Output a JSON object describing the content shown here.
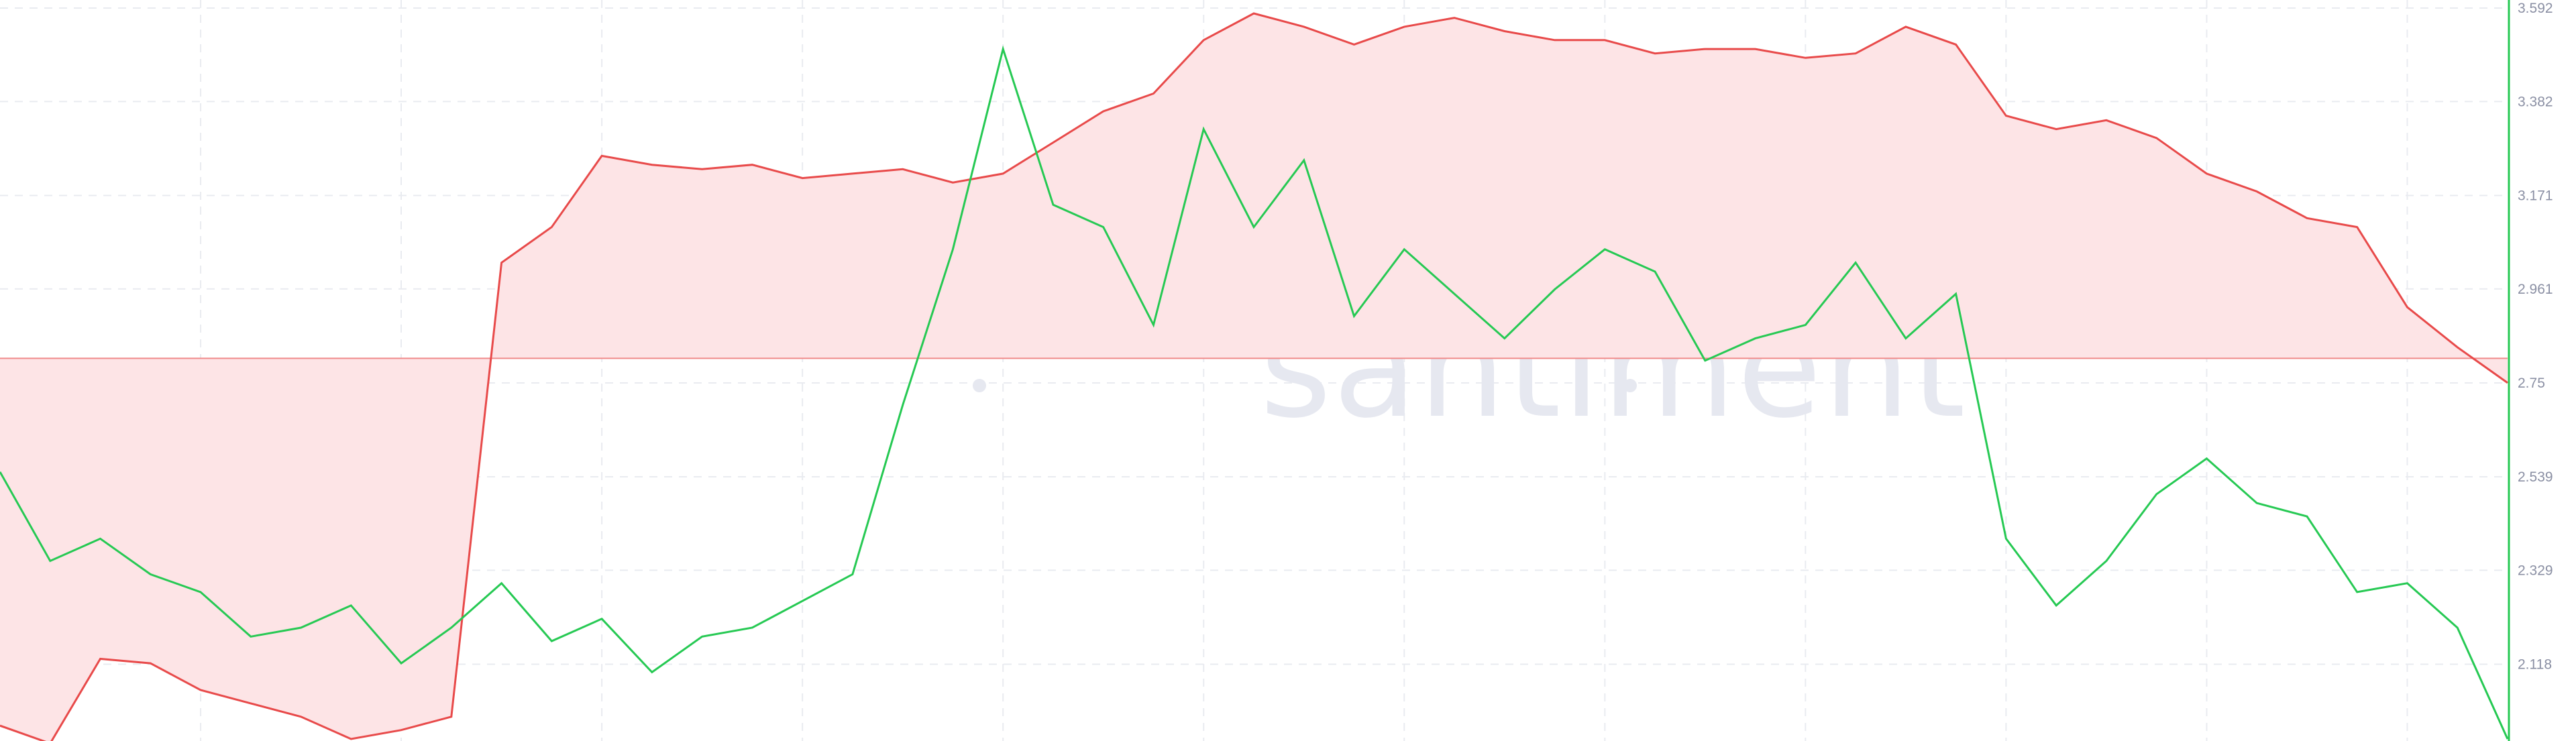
{
  "watermark": "santiment",
  "colors": {
    "background": "#ffffff",
    "grid": "#e9ebf0",
    "axis": "#26c953",
    "tick_text": "#8a8fa3",
    "series_a": "#e84a4a",
    "series_a_fill": "#fde4e6",
    "series_b": "#26c953",
    "reference_line": "#f08a8a"
  },
  "chart_data": {
    "type": "line",
    "title": "",
    "xlabel": "",
    "ylabel": "",
    "ylim": [
      1.95,
      3.592
    ],
    "y_ticks": [
      "3.592",
      "3.382",
      "3.171",
      "2.961",
      "2.75",
      "2.539",
      "2.329",
      "2.118"
    ],
    "y_tick_values": [
      3.592,
      3.382,
      3.171,
      2.961,
      2.75,
      2.539,
      2.329,
      2.118
    ],
    "reference_value": 2.805,
    "x": [
      0,
      2,
      4,
      6,
      8,
      10,
      12,
      14,
      16,
      18,
      20,
      22,
      24,
      26,
      28,
      30,
      32,
      34,
      36,
      38,
      40,
      42,
      44,
      46,
      48,
      50,
      52,
      54,
      56,
      58,
      60,
      62,
      64,
      66,
      68,
      70,
      72,
      74,
      76,
      78,
      80,
      82,
      84,
      86,
      88,
      90,
      92,
      94,
      96,
      98,
      100
    ],
    "series": [
      {
        "values": [
          1.98,
          1.94,
          2.13,
          2.12,
          2.06,
          2.03,
          2.0,
          1.95,
          1.97,
          2.0,
          3.02,
          3.1,
          3.26,
          3.24,
          3.23,
          3.24,
          3.21,
          3.22,
          3.23,
          3.2,
          3.22,
          3.29,
          3.36,
          3.4,
          3.52,
          3.58,
          3.55,
          3.51,
          3.55,
          3.57,
          3.54,
          3.52,
          3.52,
          3.49,
          3.5,
          3.5,
          3.48,
          3.49,
          3.55,
          3.51,
          3.35,
          3.32,
          3.34,
          3.3,
          3.22,
          3.18,
          3.12,
          3.1,
          2.92,
          2.83,
          2.75
        ],
        "fill": "reference"
      },
      {
        "values": [
          2.55,
          2.35,
          2.4,
          2.32,
          2.28,
          2.18,
          2.2,
          2.25,
          2.12,
          2.2,
          2.3,
          2.17,
          2.22,
          2.1,
          2.18,
          2.2,
          2.26,
          2.32,
          2.7,
          3.05,
          3.5,
          3.15,
          3.1,
          2.88,
          3.32,
          3.1,
          3.25,
          2.9,
          3.05,
          2.95,
          2.85,
          2.96,
          3.05,
          3.0,
          2.8,
          2.85,
          2.88,
          3.02,
          2.85,
          2.95,
          2.4,
          2.25,
          2.35,
          2.5,
          2.58,
          2.48,
          2.45,
          2.28,
          2.3,
          2.2,
          1.95
        ]
      }
    ]
  }
}
